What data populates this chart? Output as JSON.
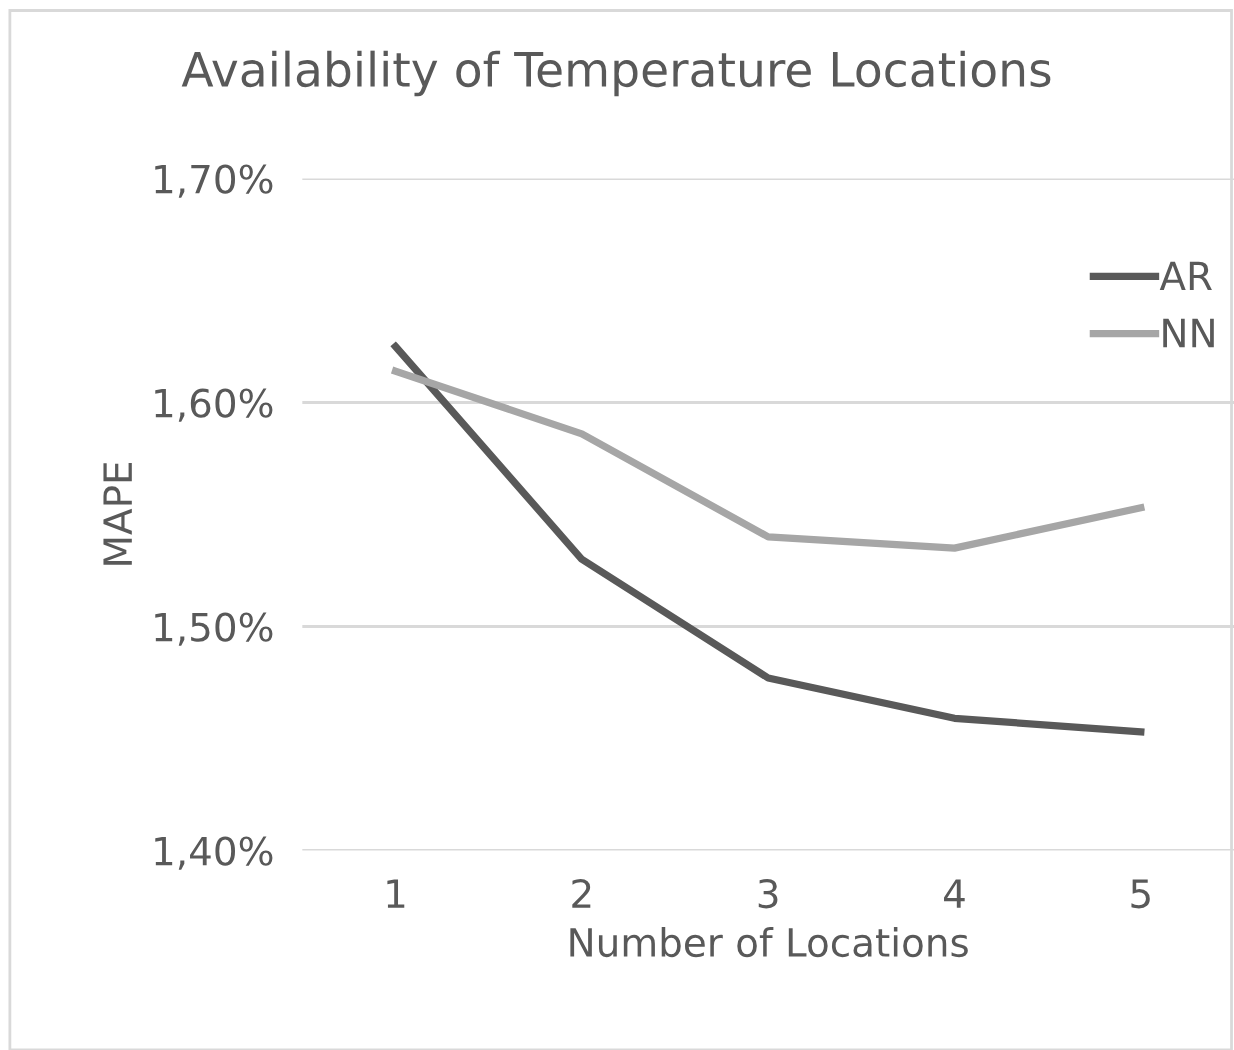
{
  "chart_data": {
    "type": "line",
    "title": "Availability of Temperature Locations",
    "xlabel": "Number of Locations",
    "ylabel": "MAPE",
    "categories": [
      "1",
      "2",
      "3",
      "4",
      "5"
    ],
    "series": [
      {
        "name": "AR",
        "color": "#595959",
        "values": [
          1.625,
          1.53,
          1.477,
          1.459,
          1.453
        ]
      },
      {
        "name": "NN",
        "color": "#a6a6a6",
        "values": [
          1.614,
          1.586,
          1.54,
          1.535,
          1.553
        ]
      }
    ],
    "ylim": [
      1.4,
      1.7
    ],
    "yticks": [
      {
        "value": 1.4,
        "label": "1,40%"
      },
      {
        "value": 1.5,
        "label": "1,50%"
      },
      {
        "value": 1.6,
        "label": "1,60%"
      },
      {
        "value": 1.7,
        "label": "1,70%"
      }
    ],
    "grid": "y",
    "legend": "right",
    "marker": "none",
    "line_style": "solid"
  }
}
